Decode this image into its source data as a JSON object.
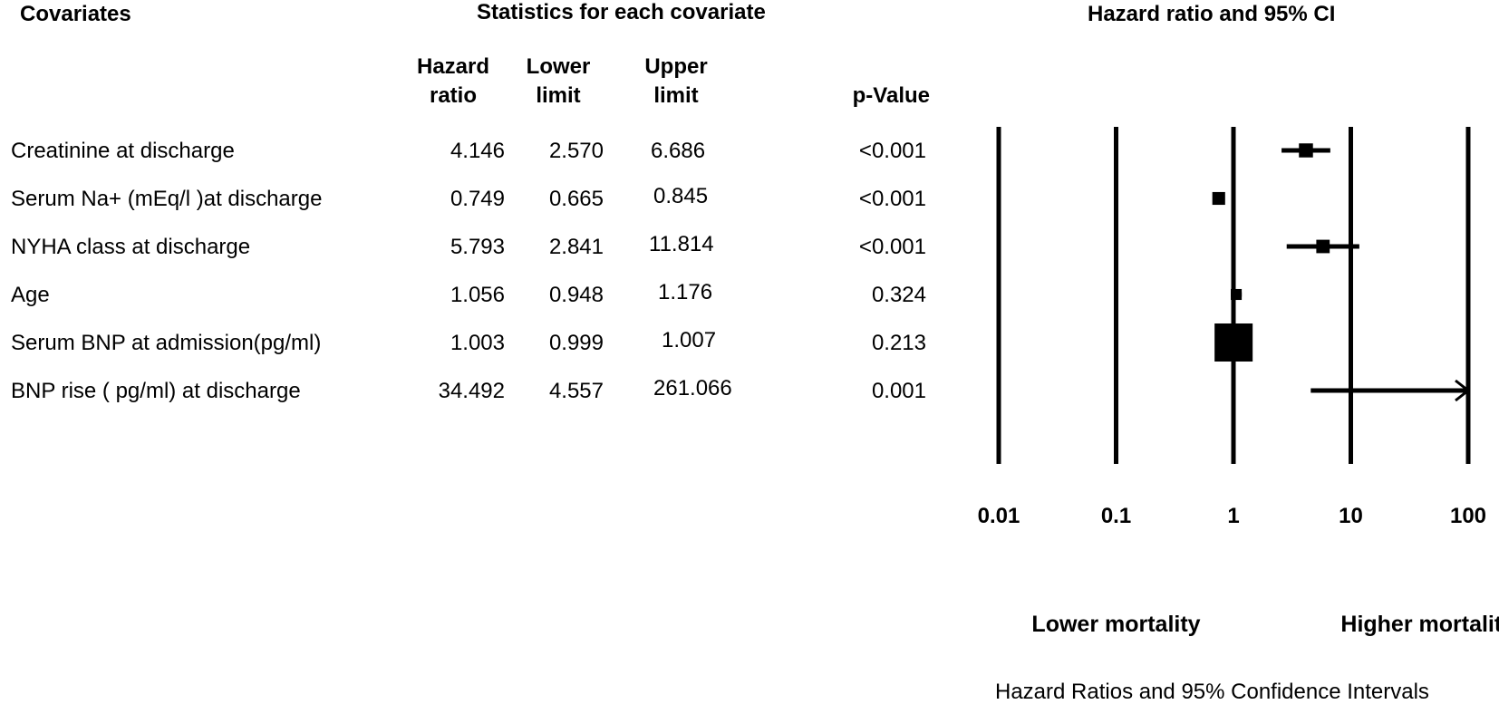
{
  "headers": {
    "covariates": "Covariates",
    "statistics": "Statistics for each covariate",
    "plot_title": "Hazard ratio and 95% CI",
    "col_hr_line1": "Hazard",
    "col_hr_line2": "ratio",
    "col_lower_line1": "Lower",
    "col_lower_line2": "limit",
    "col_upper_line1": "Upper",
    "col_upper_line2": "limit",
    "col_p": "p-Value"
  },
  "rows": [
    {
      "covariate": "Creatinine at discharge",
      "hr": "4.146",
      "lower": "2.570",
      "upper": "6.686",
      "p": "<0.001"
    },
    {
      "covariate": "Serum Na+ (mEq/l )at discharge",
      "hr": "0.749",
      "lower": "0.665",
      "upper": "0.845",
      "p": "<0.001"
    },
    {
      "covariate": "NYHA class at discharge",
      "hr": "5.793",
      "lower": "2.841",
      "upper": "11.814",
      "p": "<0.001"
    },
    {
      "covariate": "Age",
      "hr": "1.056",
      "lower": "0.948",
      "upper": "1.176",
      "p": "0.324"
    },
    {
      "covariate": "Serum BNP  at admission(pg/ml)",
      "hr": "1.003",
      "lower": "0.999",
      "upper": "1.007",
      "p": "0.213"
    },
    {
      "covariate": "BNP rise ( pg/ml) at discharge",
      "hr": "34.492",
      "lower": "4.557",
      "upper": "261.066",
      "p": "0.001"
    }
  ],
  "chart_data": {
    "type": "scatter",
    "subtype": "forest-plot",
    "title": "Hazard ratio and 95% CI",
    "x_scale": "log",
    "xlim": [
      0.01,
      100
    ],
    "x_ticks": [
      0.01,
      0.1,
      1,
      10,
      100
    ],
    "x_tick_labels": [
      "0.01",
      "0.1",
      "1",
      "10",
      "100"
    ],
    "reference_line": 1,
    "grid_lines": [
      0.01,
      0.1,
      1,
      10,
      100
    ],
    "left_label": "Lower mortality",
    "right_label": "Higher mortality",
    "caption": "Hazard Ratios and 95% Confidence Intervals",
    "series": [
      {
        "points": [
          {
            "label": "Creatinine at discharge",
            "hr": 4.146,
            "lower": 2.57,
            "upper": 6.686,
            "weight": 0.22
          },
          {
            "label": "Serum Na+ (mEq/l )at discharge",
            "hr": 0.749,
            "lower": 0.665,
            "upper": 0.845,
            "weight": 0.18
          },
          {
            "label": "NYHA class at discharge",
            "hr": 5.793,
            "lower": 2.841,
            "upper": 11.814,
            "weight": 0.2
          },
          {
            "label": "Age",
            "hr": 1.056,
            "lower": 0.948,
            "upper": 1.176,
            "weight": 0.12
          },
          {
            "label": "Serum BNP  at admission(pg/ml)",
            "hr": 1.003,
            "lower": 0.999,
            "upper": 1.007,
            "weight": 1.0
          },
          {
            "label": "BNP rise ( pg/ml) at discharge",
            "hr": 34.492,
            "lower": 4.557,
            "upper": 261.066,
            "weight": 0.0
          }
        ]
      }
    ],
    "color": "#000000"
  }
}
